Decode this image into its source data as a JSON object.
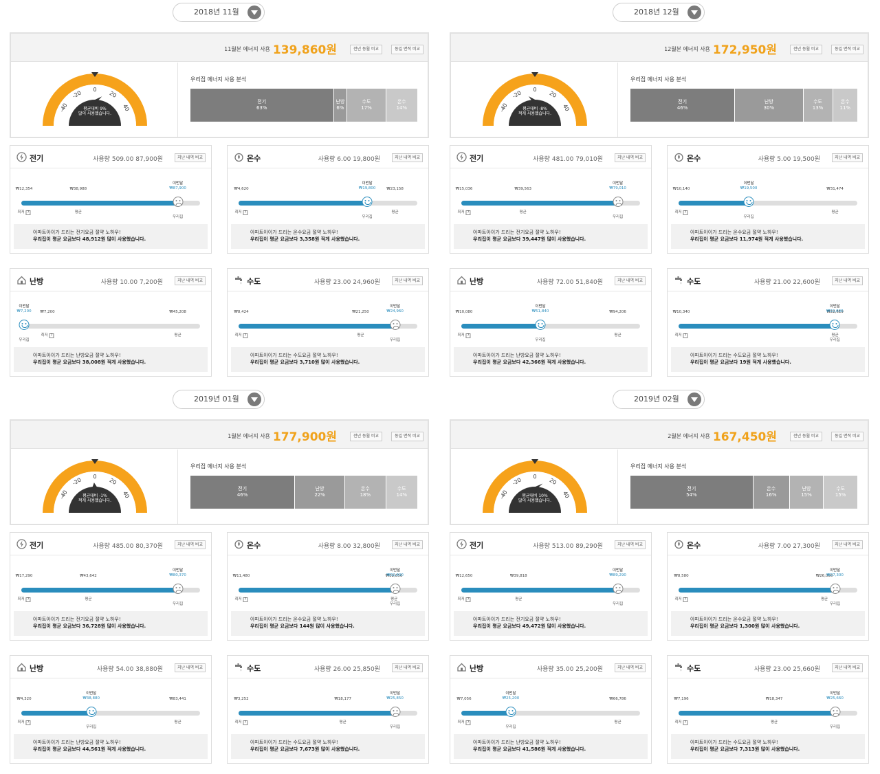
{
  "common": {
    "month_usage_suffix": "월분 에너지 사용",
    "won": "원",
    "btn_prev_year": "전년 동월 비교",
    "btn_same_area": "동일 면적 비교",
    "analysis_title": "우리집 에너지 사용 분석",
    "usage_label": "사용량",
    "history_btn": "지난 내역 비교",
    "this_month": "이번달",
    "min": "최저",
    "avg": "평균",
    "ours": "우리집",
    "qm": "?"
  },
  "months": [
    {
      "label": "2018년 11월",
      "month_num": "11",
      "total": "139,860",
      "gauge_pct": 9,
      "gauge_text1": "평균대비  9%",
      "gauge_text2": "많이 사용했습니다.",
      "breakdown": [
        {
          "name": "전기",
          "pct": "63%",
          "value": 63,
          "color": "#7d7d7d"
        },
        {
          "name": "난방",
          "pct": "6%",
          "value": 6,
          "color": "#9a9a9a"
        },
        {
          "name": "수도",
          "pct": "17%",
          "value": 17,
          "color": "#b3b3b3"
        },
        {
          "name": "온수",
          "pct": "14%",
          "value": 14,
          "color": "#c9c9c9"
        }
      ],
      "cards": [
        {
          "name": "전기",
          "icon": "electricity-icon",
          "usage": "509.00",
          "amount": "87,900원",
          "min": "₩12,354",
          "avg": "₩38,988",
          "ours": "₩87,900",
          "min_v": 12354,
          "avg_v": 38988,
          "ours_v": 87900,
          "order": [
            "min",
            "avg",
            "ours"
          ],
          "tip1": "아파트아이가 드리는 전기요금 절약 노하우!",
          "tip2": "우리집이 평균 요금보다 48,912원 많이 사용했습니다.",
          "happy": false
        },
        {
          "name": "온수",
          "icon": "hot-water-icon",
          "usage": "6.00",
          "amount": "19,800원",
          "min": "₩4,620",
          "avg": "₩23,158",
          "ours": "₩19,800",
          "min_v": 4620,
          "avg_v": 23158,
          "ours_v": 19800,
          "order": [
            "min",
            "ours",
            "avg"
          ],
          "tip1": "아파트아이가 드리는 온수요금 절약 노하우!",
          "tip2": "우리집이 평균 요금보다 3,358원 적게 사용했습니다.",
          "happy": true
        },
        {
          "name": "난방",
          "icon": "heating-icon",
          "usage": "10.00",
          "amount": "7,200원",
          "min": "₩7,200",
          "avg": "₩45,208",
          "ours": "₩7,200",
          "min_v": 7200,
          "avg_v": 45208,
          "ours_v": 7200,
          "order": [
            "ours",
            "min",
            "avg"
          ],
          "tip1": "아파트아이가 드리는 난방요금 절약 노하우!",
          "tip2": "우리집이 평균 요금보다 38,008원 적게 사용했습니다.",
          "happy": true
        },
        {
          "name": "수도",
          "icon": "water-faucet-icon",
          "usage": "23.00",
          "amount": "24,960원",
          "min": "₩8,424",
          "avg": "₩21,250",
          "ours": "₩24,960",
          "min_v": 8424,
          "avg_v": 21250,
          "ours_v": 24960,
          "order": [
            "min",
            "avg",
            "ours"
          ],
          "tip1": "아파트아이가 드리는 수도요금 절약 노하우!",
          "tip2": "우리집이 평균 요금보다 3,710원 많이 사용했습니다.",
          "happy": false
        }
      ]
    },
    {
      "label": "2018년 12월",
      "month_num": "12",
      "total": "172,950",
      "gauge_pct": -8,
      "gauge_text1": "평균대비  -8%",
      "gauge_text2": "적게 사용했습니다.",
      "breakdown": [
        {
          "name": "전기",
          "pct": "46%",
          "value": 46,
          "color": "#7d7d7d"
        },
        {
          "name": "난방",
          "pct": "30%",
          "value": 30,
          "color": "#9a9a9a"
        },
        {
          "name": "수도",
          "pct": "13%",
          "value": 13,
          "color": "#b3b3b3"
        },
        {
          "name": "온수",
          "pct": "11%",
          "value": 11,
          "color": "#c9c9c9"
        }
      ],
      "cards": [
        {
          "name": "전기",
          "icon": "electricity-icon",
          "usage": "481.00",
          "amount": "79,010원",
          "min": "₩15,036",
          "avg": "₩39,563",
          "ours": "₩79,010",
          "min_v": 15036,
          "avg_v": 39563,
          "ours_v": 79010,
          "order": [
            "min",
            "avg",
            "ours"
          ],
          "tip1": "아파트아이가 드리는 전기요금 절약 노하우!",
          "tip2": "우리집이 평균 요금보다 39,447원 많이 사용했습니다.",
          "happy": false
        },
        {
          "name": "온수",
          "icon": "hot-water-icon",
          "usage": "5.00",
          "amount": "19,500원",
          "min": "₩10,140",
          "avg": "₩31,474",
          "ours": "₩19,500",
          "min_v": 10140,
          "avg_v": 31474,
          "ours_v": 19500,
          "order": [
            "min",
            "ours",
            "avg"
          ],
          "tip1": "아파트아이가 드리는 온수요금 절약 노하우!",
          "tip2": "우리집이 평균 요금보다 11,974원 적게 사용했습니다.",
          "happy": true
        },
        {
          "name": "난방",
          "icon": "heating-icon",
          "usage": "72.00",
          "amount": "51,840원",
          "min": "₩10,080",
          "avg": "₩94,206",
          "ours": "₩51,840",
          "min_v": 10080,
          "avg_v": 94206,
          "ours_v": 51840,
          "order": [
            "min",
            "ours",
            "avg"
          ],
          "tip1": "아파트아이가 드리는 난방요금 절약 노하우!",
          "tip2": "우리집이 평균 요금보다 42,366원 적게 사용했습니다.",
          "happy": true
        },
        {
          "name": "수도",
          "icon": "water-faucet-icon",
          "usage": "21.00",
          "amount": "22,600원",
          "min": "₩10,340",
          "avg": "₩22,619",
          "ours": "₩22,600",
          "min_v": 10340,
          "avg_v": 22619,
          "ours_v": 22600,
          "order": [
            "min",
            "ours",
            "avg"
          ],
          "tip1": "아파트아이가 드리는 수도요금 절약 노하우!",
          "tip2": "우리집이 평균 요금보다 19원 적게 사용했습니다.",
          "happy": true
        }
      ]
    },
    {
      "label": "2019년 01월",
      "month_num": "1",
      "total": "177,900",
      "gauge_pct": -1,
      "gauge_text1": "평균대비  -1%",
      "gauge_text2": "적게 사용했습니다.",
      "breakdown": [
        {
          "name": "전기",
          "pct": "46%",
          "value": 46,
          "color": "#7d7d7d"
        },
        {
          "name": "난방",
          "pct": "22%",
          "value": 22,
          "color": "#9a9a9a"
        },
        {
          "name": "온수",
          "pct": "18%",
          "value": 18,
          "color": "#b3b3b3"
        },
        {
          "name": "수도",
          "pct": "14%",
          "value": 14,
          "color": "#c9c9c9"
        }
      ],
      "cards": [
        {
          "name": "전기",
          "icon": "electricity-icon",
          "usage": "485.00",
          "amount": "80,370원",
          "min": "₩17,290",
          "avg": "₩43,642",
          "ours": "₩80,370",
          "min_v": 17290,
          "avg_v": 43642,
          "ours_v": 80370,
          "order": [
            "min",
            "avg",
            "ours"
          ],
          "tip1": "아파트아이가 드리는 전기요금 절약 노하우!",
          "tip2": "우리집이 평균 요금보다 36,728원 많이 사용했습니다.",
          "happy": false
        },
        {
          "name": "온수",
          "icon": "hot-water-icon",
          "usage": "8.00",
          "amount": "32,800원",
          "min": "₩11,480",
          "avg": "₩32,656",
          "ours": "₩32,800",
          "min_v": 11480,
          "avg_v": 32656,
          "ours_v": 32800,
          "order": [
            "min",
            "avg",
            "ours"
          ],
          "tip1": "아파트아이가 드리는 온수요금 절약 노하우!",
          "tip2": "우리집이 평균 요금보다 144원 많이 사용했습니다.",
          "happy": false
        },
        {
          "name": "난방",
          "icon": "heating-icon",
          "usage": "54.00",
          "amount": "38,880원",
          "min": "₩4,320",
          "avg": "₩83,441",
          "ours": "₩38,880",
          "min_v": 4320,
          "avg_v": 83441,
          "ours_v": 38880,
          "order": [
            "min",
            "ours",
            "avg"
          ],
          "tip1": "아파트아이가 드리는 난방요금 절약 노하우!",
          "tip2": "우리집이 평균 요금보다 44,561원 적게 사용했습니다.",
          "happy": true
        },
        {
          "name": "수도",
          "icon": "water-faucet-icon",
          "usage": "26.00",
          "amount": "25,850원",
          "min": "₩3,252",
          "avg": "₩18,177",
          "ours": "₩25,850",
          "min_v": 3252,
          "avg_v": 18177,
          "ours_v": 25850,
          "order": [
            "min",
            "avg",
            "ours"
          ],
          "tip1": "아파트아이가 드리는 수도요금 절약 노하우!",
          "tip2": "우리집이 평균 요금보다 7,673원 많이 사용했습니다.",
          "happy": false
        }
      ]
    },
    {
      "label": "2019년 02월",
      "month_num": "2",
      "total": "167,450",
      "gauge_pct": 10,
      "gauge_text1": "평균대비  10%",
      "gauge_text2": "많이 사용했습니다.",
      "breakdown": [
        {
          "name": "전기",
          "pct": "54%",
          "value": 54,
          "color": "#7d7d7d"
        },
        {
          "name": "온수",
          "pct": "16%",
          "value": 16,
          "color": "#9a9a9a"
        },
        {
          "name": "난방",
          "pct": "15%",
          "value": 15,
          "color": "#b3b3b3"
        },
        {
          "name": "수도",
          "pct": "15%",
          "value": 15,
          "color": "#c9c9c9"
        }
      ],
      "cards": [
        {
          "name": "전기",
          "icon": "electricity-icon",
          "usage": "513.00",
          "amount": "89,290원",
          "min": "₩12,650",
          "avg": "₩39,818",
          "ours": "₩89,290",
          "min_v": 12650,
          "avg_v": 39818,
          "ours_v": 89290,
          "order": [
            "min",
            "avg",
            "ours"
          ],
          "tip1": "아파트아이가 드리는 전기요금 절약 노하우!",
          "tip2": "우리집이 평균 요금보다 49,472원 많이 사용했습니다.",
          "happy": false
        },
        {
          "name": "온수",
          "icon": "hot-water-icon",
          "usage": "7.00",
          "amount": "27,300원",
          "min": "₩8,580",
          "avg": "₩26,000",
          "ours": "₩27,300",
          "min_v": 8580,
          "avg_v": 26000,
          "ours_v": 27300,
          "order": [
            "min",
            "avg",
            "ours"
          ],
          "tip1": "아파트아이가 드리는 온수요금 절약 노하우!",
          "tip2": "우리집이 평균 요금보다 1,300원 많이 사용했습니다.",
          "happy": false
        },
        {
          "name": "난방",
          "icon": "heating-icon",
          "usage": "35.00",
          "amount": "25,200원",
          "min": "₩7,056",
          "avg": "₩66,786",
          "ours": "₩25,200",
          "min_v": 7056,
          "avg_v": 66786,
          "ours_v": 25200,
          "order": [
            "min",
            "ours",
            "avg"
          ],
          "tip1": "아파트아이가 드리는 난방요금 절약 노하우!",
          "tip2": "우리집이 평균 요금보다 41,586원 적게 사용했습니다.",
          "happy": true
        },
        {
          "name": "수도",
          "icon": "water-faucet-icon",
          "usage": "23.00",
          "amount": "25,660원",
          "min": "₩7,196",
          "avg": "₩18,347",
          "ours": "₩25,660",
          "min_v": 7196,
          "avg_v": 18347,
          "ours_v": 25660,
          "order": [
            "min",
            "avg",
            "ours"
          ],
          "tip1": "아파트아이가 드리는 수도요금 절약 노하우!",
          "tip2": "우리집이 평균 요금보다 7,313원 많이 사용했습니다.",
          "happy": false
        }
      ]
    }
  ],
  "colors": {
    "gauge": "#f6a21b",
    "bar_fill": "#2a8dbd",
    "accent": "#f0a21b"
  }
}
